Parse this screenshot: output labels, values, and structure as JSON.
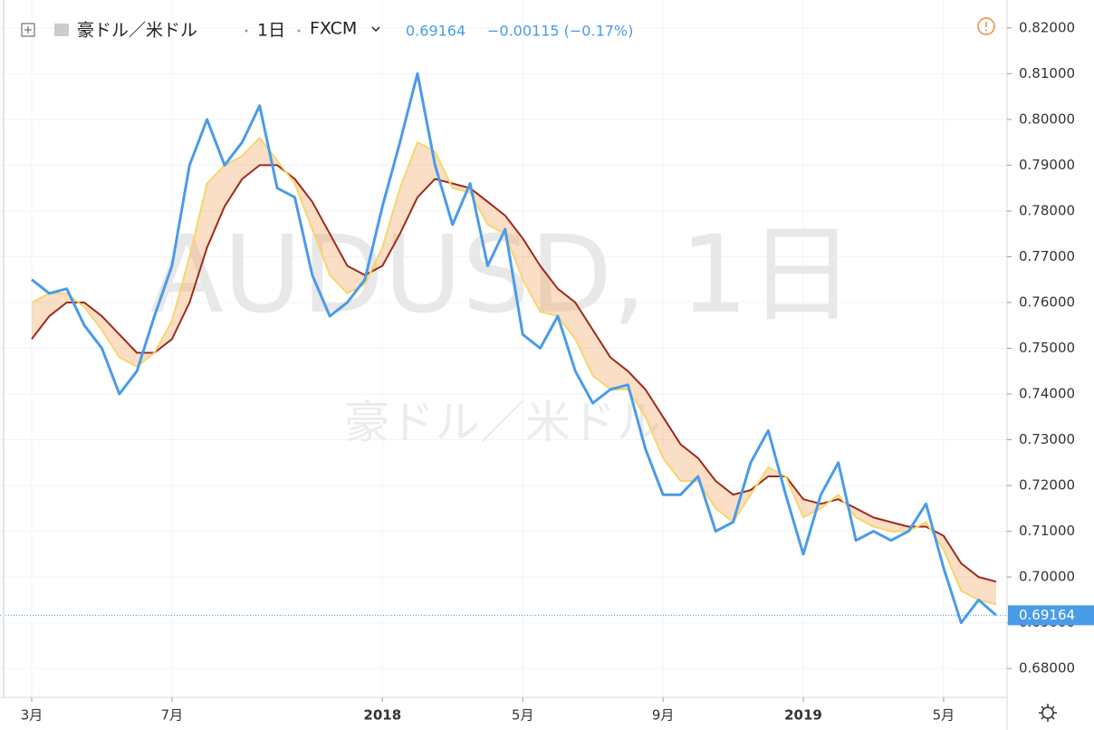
{
  "chart_data": {
    "type": "line",
    "symbol_name": "豪ドル／米ドル",
    "interval": "1日",
    "exchange": "FXCM",
    "change": "−0.00115 (−0.17%)",
    "watermark": "AUDUSD, 1日",
    "categories": [
      "3月",
      null,
      null,
      null,
      null,
      null,
      null,
      null,
      "7月",
      null,
      null,
      null,
      null,
      null,
      null,
      null,
      null,
      null,
      null,
      null,
      "2018",
      null,
      null,
      null,
      null,
      null,
      null,
      null,
      "5月",
      null,
      null,
      null,
      null,
      null,
      null,
      null,
      "9月",
      null,
      null,
      null,
      null,
      null,
      null,
      null,
      "2019",
      null,
      null,
      null,
      null,
      null,
      null,
      null,
      "5月",
      null,
      null,
      null
    ],
    "series": [
      {
        "color": "#4a9be8",
        "values": [
          0.765,
          0.762,
          0.763,
          0.755,
          0.75,
          0.74,
          0.745,
          0.757,
          0.768,
          0.79,
          0.8,
          0.79,
          0.795,
          0.803,
          0.785,
          0.783,
          0.766,
          0.757,
          0.76,
          0.765,
          0.781,
          0.795,
          0.81,
          0.79,
          0.777,
          0.786,
          0.768,
          0.776,
          0.753,
          0.75,
          0.757,
          0.745,
          0.738,
          0.741,
          0.742,
          0.728,
          0.718,
          0.718,
          0.722,
          0.71,
          0.712,
          0.725,
          0.732,
          0.718,
          0.705,
          0.718,
          0.725,
          0.708,
          0.71,
          0.708,
          0.71,
          0.716,
          0.702,
          0.69,
          0.695,
          0.69164
        ]
      },
      {
        "color": "#f5d76e",
        "values": [
          0.76,
          0.762,
          0.762,
          0.759,
          0.754,
          0.748,
          0.746,
          0.749,
          0.756,
          0.77,
          0.786,
          0.79,
          0.792,
          0.796,
          0.791,
          0.786,
          0.776,
          0.766,
          0.762,
          0.764,
          0.772,
          0.785,
          0.795,
          0.793,
          0.785,
          0.784,
          0.777,
          0.775,
          0.765,
          0.758,
          0.757,
          0.752,
          0.744,
          0.741,
          0.741,
          0.735,
          0.726,
          0.721,
          0.721,
          0.715,
          0.712,
          0.718,
          0.724,
          0.722,
          0.713,
          0.715,
          0.718,
          0.713,
          0.711,
          0.71,
          0.71,
          0.712,
          0.706,
          0.697,
          0.695,
          0.694
        ]
      },
      {
        "color": "#9c2a1e",
        "values": [
          0.752,
          0.757,
          0.76,
          0.76,
          0.757,
          0.753,
          0.749,
          0.749,
          0.752,
          0.76,
          0.772,
          0.781,
          0.787,
          0.79,
          0.79,
          0.787,
          0.782,
          0.775,
          0.768,
          0.766,
          0.768,
          0.775,
          0.783,
          0.787,
          0.786,
          0.785,
          0.782,
          0.779,
          0.774,
          0.768,
          0.763,
          0.76,
          0.754,
          0.748,
          0.745,
          0.741,
          0.735,
          0.729,
          0.726,
          0.721,
          0.718,
          0.719,
          0.722,
          0.722,
          0.717,
          0.716,
          0.717,
          0.715,
          0.713,
          0.712,
          0.711,
          0.711,
          0.709,
          0.703,
          0.7,
          0.699
        ]
      }
    ],
    "ylim": [
      0.6737,
      0.8261
    ],
    "yticks": [
      {
        "value": 0.68,
        "label": "0.68000"
      },
      {
        "value": 0.69,
        "label": "0.69000"
      },
      {
        "value": 0.7,
        "label": "0.70000"
      },
      {
        "value": 0.71,
        "label": "0.71000"
      },
      {
        "value": 0.72,
        "label": "0.72000"
      },
      {
        "value": 0.73,
        "label": "0.73000"
      },
      {
        "value": 0.74,
        "label": "0.74000"
      },
      {
        "value": 0.75,
        "label": "0.75000"
      },
      {
        "value": 0.76,
        "label": "0.76000"
      },
      {
        "value": 0.77,
        "label": "0.77000"
      },
      {
        "value": 0.78,
        "label": "0.78000"
      },
      {
        "value": 0.79,
        "label": "0.79000"
      },
      {
        "value": 0.8,
        "label": "0.80000"
      },
      {
        "value": 0.81,
        "label": "0.81000"
      },
      {
        "value": 0.82,
        "label": "0.82000"
      }
    ],
    "grid": true
  }
}
